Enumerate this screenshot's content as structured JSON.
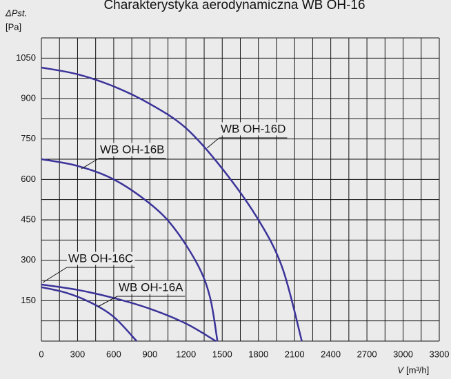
{
  "chart_data": {
    "type": "line",
    "title": "Charakterystyka aerodynamiczna WB OH-16",
    "y_label": "ΔPst.",
    "y_unit": "[Pa]",
    "x_label": "V",
    "x_unit": "[m³/h]",
    "xlim": [
      0,
      3300
    ],
    "xticks": [
      0,
      300,
      600,
      900,
      1200,
      1500,
      1800,
      2100,
      2400,
      2700,
      3000,
      3300
    ],
    "ylim": [
      0,
      1125
    ],
    "yticks": [
      150,
      300,
      450,
      600,
      750,
      900,
      1050
    ],
    "x_minor_step": 150,
    "y_minor_step": 75,
    "grid": true,
    "series": [
      {
        "name": "WB OH-16D",
        "color": "#3b3399",
        "x": [
          0,
          300,
          600,
          900,
          1200,
          1500,
          1800,
          2000,
          2160
        ],
        "values": [
          1015,
          990,
          945,
          880,
          790,
          640,
          450,
          270,
          0
        ]
      },
      {
        "name": "WB OH-16B",
        "color": "#3b3399",
        "x": [
          0,
          300,
          600,
          900,
          1100,
          1300,
          1400,
          1460
        ],
        "values": [
          675,
          650,
          600,
          510,
          420,
          280,
          160,
          0
        ]
      },
      {
        "name": "WB OH-16C",
        "color": "#3b3399",
        "x": [
          0,
          300,
          600,
          900,
          1200,
          1447
        ],
        "values": [
          210,
          190,
          160,
          120,
          65,
          0
        ]
      },
      {
        "name": "WB OH-16A",
        "color": "#3b3399",
        "x": [
          0,
          200,
          400,
          600,
          790
        ],
        "values": [
          200,
          180,
          145,
          90,
          0
        ]
      }
    ]
  }
}
